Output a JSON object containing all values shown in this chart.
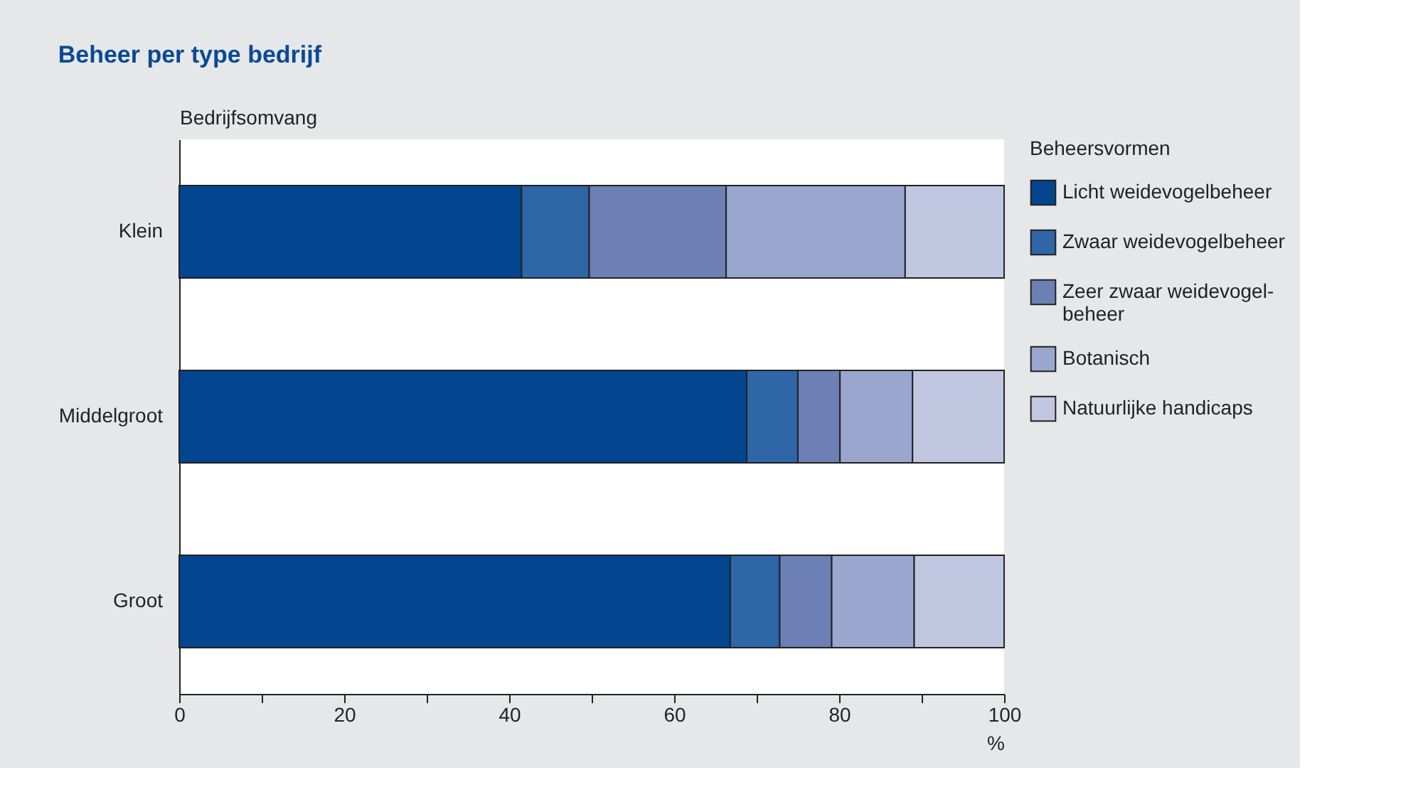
{
  "chart_data": {
    "type": "bar",
    "orientation": "horizontal",
    "stacked": true,
    "title": "Beheer per type bedrijf",
    "ylabel": "Bedrijfsomvang",
    "xlabel": "%",
    "legend_title": "Beheersvormen",
    "categories": [
      "Klein",
      "Middelgroot",
      "Groot"
    ],
    "series": [
      {
        "name": "Licht weidevogelbeheer",
        "color": "#03458e",
        "values": [
          41.5,
          68.8,
          66.8
        ]
      },
      {
        "name": "Zwaar weidevogelbeheer",
        "color": "#2e66a8",
        "values": [
          8.2,
          6.2,
          6.0
        ]
      },
      {
        "name": "Zeer zwaar weidevogel-\nbeheer",
        "color": "#6d80b5",
        "values": [
          16.6,
          5.1,
          6.3
        ]
      },
      {
        "name": "Botanisch",
        "color": "#99a7cf",
        "values": [
          21.7,
          8.8,
          10.0
        ]
      },
      {
        "name": "Natuurlijke handicaps",
        "color": "#c1c6e1",
        "values": [
          12.0,
          11.1,
          10.9
        ]
      }
    ],
    "xlim": [
      0,
      100
    ],
    "xticks": [
      0,
      {
        "value": 10,
        "label": null
      },
      20,
      {
        "value": 30,
        "label": null
      },
      40,
      {
        "value": 50,
        "label": null
      },
      60,
      {
        "value": 70,
        "label": null
      },
      80,
      {
        "value": 90,
        "label": null
      },
      100
    ],
    "grid": false,
    "legend": "top right"
  }
}
